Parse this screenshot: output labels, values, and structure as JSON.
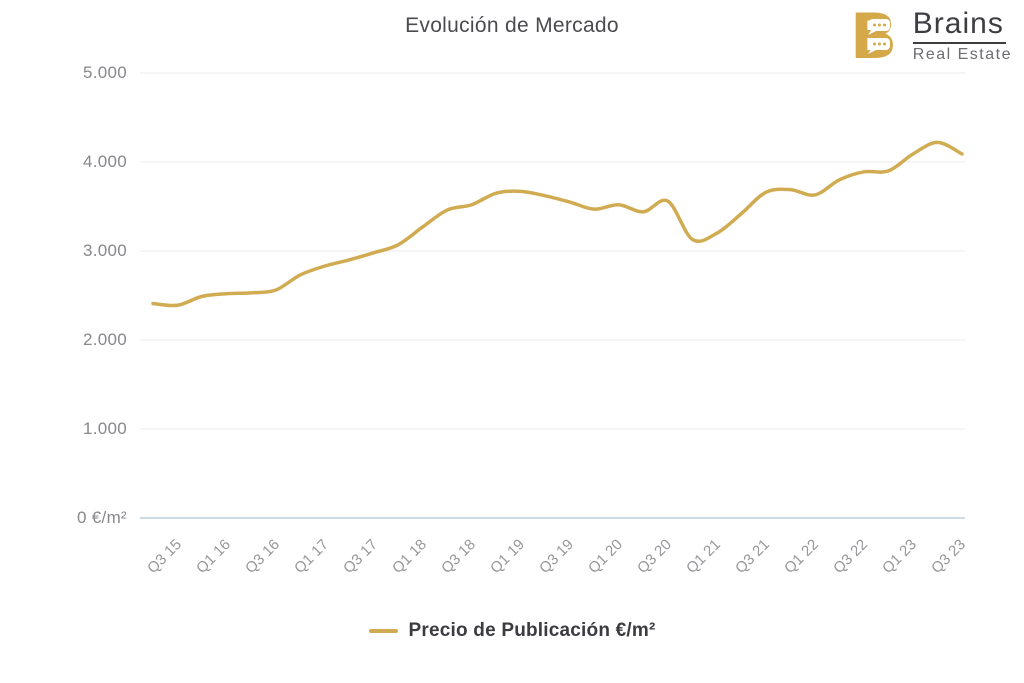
{
  "header": {
    "title": "Evolución de Mercado",
    "logo": {
      "brand": "Brains",
      "sub": "Real Estate",
      "color": "#d5a94a"
    }
  },
  "chart_data": {
    "type": "line",
    "title": "Evolución de Mercado",
    "x": [
      "Q3 15",
      "Q4 15",
      "Q1 16",
      "Q2 16",
      "Q3 16",
      "Q4 16",
      "Q1 17",
      "Q2 17",
      "Q3 17",
      "Q4 17",
      "Q1 18",
      "Q2 18",
      "Q3 18",
      "Q4 18",
      "Q1 19",
      "Q2 19",
      "Q3 19",
      "Q4 19",
      "Q1 20",
      "Q2 20",
      "Q3 20",
      "Q4 20",
      "Q1 21",
      "Q2 21",
      "Q3 21",
      "Q4 21",
      "Q1 22",
      "Q2 22",
      "Q3 22",
      "Q4 22",
      "Q1 23",
      "Q2 23",
      "Q3 23",
      "Q4 23"
    ],
    "x_tick_labels": [
      "Q3 15",
      "Q1 16",
      "Q3 16",
      "Q1 17",
      "Q3 17",
      "Q1 18",
      "Q3 18",
      "Q1 19",
      "Q3 19",
      "Q1 20",
      "Q3 20",
      "Q1 21",
      "Q3 21",
      "Q1 22",
      "Q3 22",
      "Q1 23",
      "Q3 23"
    ],
    "series": [
      {
        "name": "Precio de Publicación €/m²",
        "color": "#d1ab51",
        "values": [
          2410,
          2390,
          2490,
          2520,
          2530,
          2560,
          2730,
          2830,
          2900,
          2980,
          3070,
          3270,
          3460,
          3520,
          3650,
          3670,
          3620,
          3550,
          3470,
          3520,
          3440,
          3560,
          3130,
          3200,
          3420,
          3660,
          3690,
          3630,
          3800,
          3890,
          3900,
          4090,
          4220,
          4090
        ]
      }
    ],
    "y_ticks": [
      "0 €/m²",
      "1.000",
      "2.000",
      "3.000",
      "4.000",
      "5.000"
    ],
    "ylim": [
      0,
      5000
    ],
    "grid": "horizontal",
    "legend_position": "bottom"
  },
  "colors": {
    "grid": "#ebebeb",
    "zero_axis": "#ccdbe1",
    "title": "#4b4b4f",
    "y_label": "#87878c",
    "x_label": "#97979b"
  }
}
